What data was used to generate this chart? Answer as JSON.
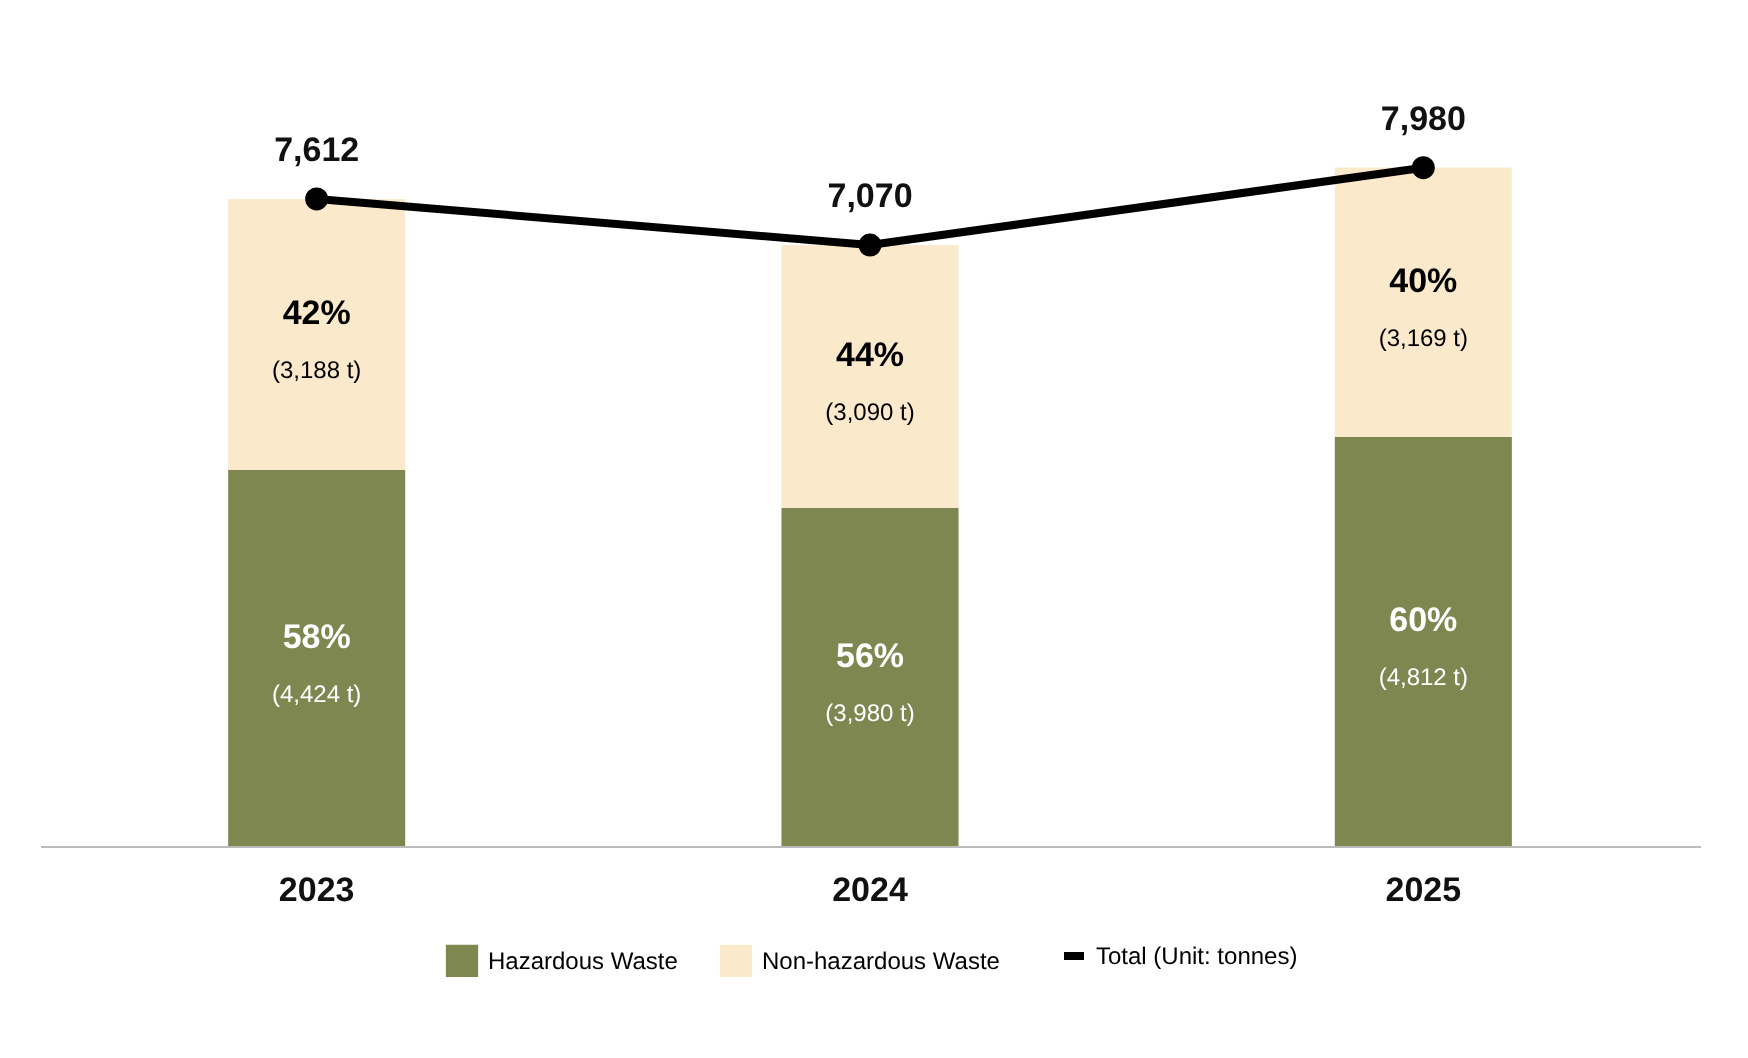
{
  "chart_data": {
    "type": "bar",
    "stacked": true,
    "categories": [
      "2023",
      "2024",
      "2025"
    ],
    "series": [
      {
        "name": "Hazardous Waste",
        "color": "#7f8751",
        "values": [
          4424,
          3980,
          4812
        ],
        "value_labels": [
          "58%\n(4,424 t)",
          "56%\n(3,980 t)",
          "60%\n(4,812 t)"
        ]
      },
      {
        "name": "Non-hazardous Waste",
        "color": "#fbe9cc",
        "values": [
          3188,
          3090,
          3169
        ],
        "value_labels": [
          "42%\n(3,188 t)",
          "44%\n(3,090 t)",
          "40%\n(3,169 t)"
        ]
      },
      {
        "name": "Total (Unit: tonnes)",
        "type": "line",
        "color": "#000000",
        "values": [
          7612,
          7070,
          7980
        ],
        "value_labels": [
          "7,612",
          "7,070",
          "7,980"
        ]
      }
    ],
    "marker": "circle",
    "legend": "bottom",
    "grid": false
  }
}
